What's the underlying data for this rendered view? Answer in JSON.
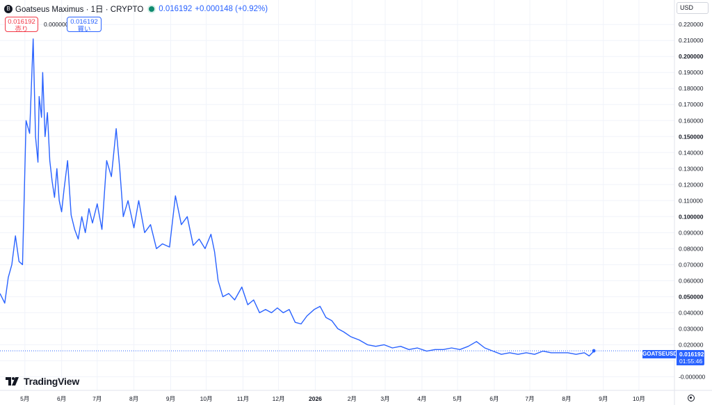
{
  "header": {
    "symbol_icon": "B",
    "title": "Goatseus Maximus · 1日 · CRYPTO",
    "price": "0.016192",
    "change": "+0.000148 (+0.92%)"
  },
  "trade": {
    "sell_price": "0.016192",
    "sell_label": "売り",
    "spread": "0.000000",
    "buy_price": "0.016192",
    "buy_label": "買い"
  },
  "currency_select": "USD",
  "branding": "TradingView",
  "last_price": {
    "label": "GOATSEUSD",
    "value": "0.016192",
    "countdown": "01:55:46"
  },
  "colors": {
    "line": "#2962ff",
    "grid": "#f0f3fa",
    "sell": "#f23645",
    "buy": "#2962ff"
  },
  "icons": [
    "symbol-logo-icon",
    "market-status-icon",
    "tradingview-logo-icon",
    "settings-icon"
  ],
  "chart_data": {
    "type": "line",
    "title": "Goatseus Maximus · 1日 · CRYPTO",
    "xlabel": "",
    "ylabel": "",
    "ylim": [
      -0.002,
      0.224
    ],
    "grid": true,
    "y_ticks": [
      "-0.000000",
      "0.010000",
      "0.020000",
      "0.030000",
      "0.040000",
      "0.050000",
      "0.060000",
      "0.070000",
      "0.080000",
      "0.090000",
      "0.100000",
      "0.110000",
      "0.120000",
      "0.130000",
      "0.140000",
      "0.150000",
      "0.160000",
      "0.170000",
      "0.180000",
      "0.190000",
      "0.200000",
      "0.210000",
      "0.220000"
    ],
    "y_bold_ticks": [
      "0.050000",
      "0.100000",
      "0.150000",
      "0.200000"
    ],
    "x_ticks": [
      {
        "label": "5月",
        "date": "2025-05-01"
      },
      {
        "label": "6月",
        "date": "2025-06-01"
      },
      {
        "label": "7月",
        "date": "2025-07-01"
      },
      {
        "label": "8月",
        "date": "2025-08-01"
      },
      {
        "label": "9月",
        "date": "2025-09-01"
      },
      {
        "label": "10月",
        "date": "2025-10-01"
      },
      {
        "label": "11月",
        "date": "2025-11-01"
      },
      {
        "label": "12月",
        "date": "2025-12-01"
      },
      {
        "label": "2026",
        "date": "2026-01-01"
      },
      {
        "label": "2月",
        "date": "2026-02-01"
      },
      {
        "label": "3月",
        "date": "2026-03-01"
      },
      {
        "label": "4月",
        "date": "2026-04-01"
      },
      {
        "label": "5月",
        "date": "2026-05-01"
      },
      {
        "label": "6月",
        "date": "2026-06-01"
      },
      {
        "label": "7月",
        "date": "2026-07-01"
      },
      {
        "label": "8月",
        "date": "2026-08-01"
      },
      {
        "label": "9月",
        "date": "2026-09-01"
      },
      {
        "label": "10月",
        "date": "2026-10-01"
      }
    ],
    "x_range": [
      "2025-04-10",
      "2026-10-31"
    ],
    "last_value": 0.016192,
    "series": [
      {
        "x": [
          "2025-04-10",
          "2025-04-14",
          "2025-04-17",
          "2025-04-20",
          "2025-04-23",
          "2025-04-26",
          "2025-04-29",
          "2025-05-02",
          "2025-05-05",
          "2025-05-08",
          "2025-05-10",
          "2025-05-12",
          "2025-05-13",
          "2025-05-15",
          "2025-05-16",
          "2025-05-18",
          "2025-05-20",
          "2025-05-22",
          "2025-05-24",
          "2025-05-26",
          "2025-05-28",
          "2025-05-30",
          "2025-06-01",
          "2025-06-03",
          "2025-06-06",
          "2025-06-09",
          "2025-06-12",
          "2025-06-15",
          "2025-06-18",
          "2025-06-21",
          "2025-06-24",
          "2025-06-27",
          "2025-07-01",
          "2025-07-05",
          "2025-07-09",
          "2025-07-13",
          "2025-07-17",
          "2025-07-20",
          "2025-07-23",
          "2025-07-27",
          "2025-08-01",
          "2025-08-05",
          "2025-08-10",
          "2025-08-15",
          "2025-08-20",
          "2025-08-25",
          "2025-08-31",
          "2025-09-05",
          "2025-09-10",
          "2025-09-15",
          "2025-09-20",
          "2025-09-25",
          "2025-09-30",
          "2025-10-05",
          "2025-10-08",
          "2025-10-11",
          "2025-10-15",
          "2025-10-20",
          "2025-10-25",
          "2025-10-31",
          "2025-11-05",
          "2025-11-10",
          "2025-11-15",
          "2025-11-20",
          "2025-11-25",
          "2025-11-30",
          "2025-12-05",
          "2025-12-10",
          "2025-12-15",
          "2025-12-20",
          "2025-12-25",
          "2025-12-31",
          "2026-01-05",
          "2026-01-10",
          "2026-01-15",
          "2026-01-20",
          "2026-01-25",
          "2026-01-31",
          "2026-02-07",
          "2026-02-14",
          "2026-02-21",
          "2026-02-28",
          "2026-03-07",
          "2026-03-14",
          "2026-03-21",
          "2026-03-28",
          "2026-04-05",
          "2026-04-12",
          "2026-04-19",
          "2026-04-26",
          "2026-05-03",
          "2026-05-10",
          "2026-05-17",
          "2026-05-24",
          "2026-05-31",
          "2026-06-07",
          "2026-06-14",
          "2026-06-21",
          "2026-06-28",
          "2026-07-05",
          "2026-07-12",
          "2026-07-19",
          "2026-07-26",
          "2026-08-02",
          "2026-08-09",
          "2026-08-16",
          "2026-08-20",
          "2026-08-24"
        ],
        "values": [
          0.052,
          0.046,
          0.062,
          0.07,
          0.088,
          0.072,
          0.07,
          0.16,
          0.152,
          0.211,
          0.15,
          0.134,
          0.175,
          0.162,
          0.19,
          0.15,
          0.165,
          0.135,
          0.122,
          0.112,
          0.13,
          0.11,
          0.103,
          0.117,
          0.135,
          0.101,
          0.092,
          0.086,
          0.1,
          0.09,
          0.105,
          0.096,
          0.108,
          0.092,
          0.135,
          0.125,
          0.155,
          0.13,
          0.1,
          0.11,
          0.093,
          0.11,
          0.09,
          0.095,
          0.08,
          0.083,
          0.081,
          0.113,
          0.095,
          0.1,
          0.082,
          0.086,
          0.08,
          0.089,
          0.078,
          0.06,
          0.05,
          0.052,
          0.048,
          0.056,
          0.045,
          0.048,
          0.04,
          0.042,
          0.04,
          0.043,
          0.04,
          0.042,
          0.034,
          0.033,
          0.038,
          0.042,
          0.044,
          0.037,
          0.035,
          0.03,
          0.028,
          0.025,
          0.023,
          0.02,
          0.019,
          0.02,
          0.018,
          0.019,
          0.017,
          0.018,
          0.016,
          0.017,
          0.017,
          0.018,
          0.017,
          0.019,
          0.022,
          0.018,
          0.016,
          0.014,
          0.015,
          0.014,
          0.015,
          0.014,
          0.016,
          0.015,
          0.015,
          0.015,
          0.014,
          0.015,
          0.013,
          0.016
        ]
      }
    ]
  }
}
